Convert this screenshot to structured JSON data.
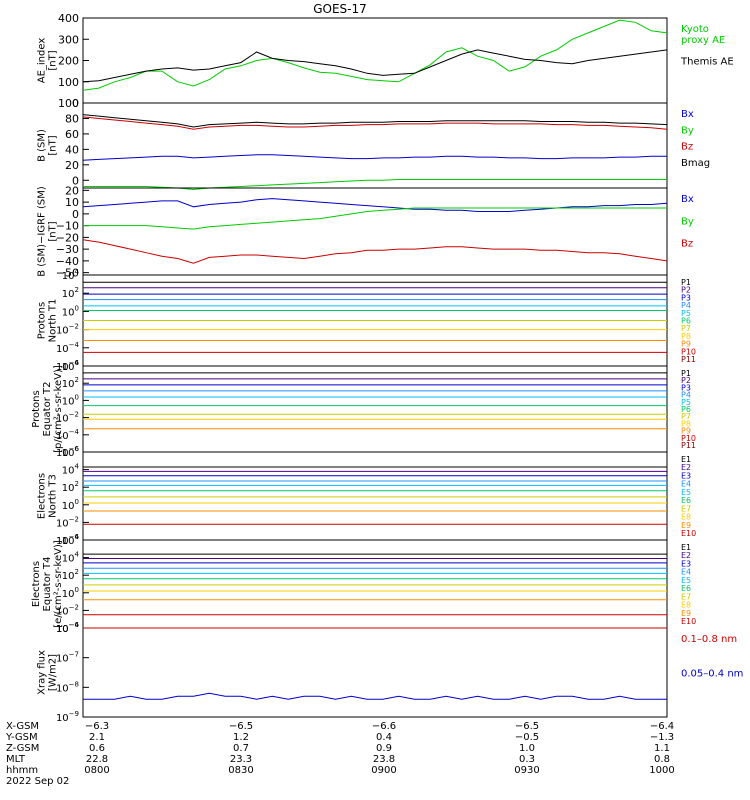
{
  "title": "GOES-17",
  "chart_data": [
    {
      "type": "line",
      "panel": "ae-index",
      "ylabel": [
        "AE_index",
        "[nT]"
      ],
      "ylim": [
        0,
        400
      ],
      "yticks": [
        "0",
        "100",
        "200",
        "300",
        "400"
      ],
      "series": [
        {
          "name": "Kyoto proxy AE",
          "label_lines": [
            "Kyoto",
            "proxy AE"
          ],
          "color": "#00cc00",
          "values": [
            60,
            70,
            100,
            120,
            150,
            150,
            100,
            80,
            110,
            160,
            175,
            200,
            210,
            190,
            165,
            145,
            140,
            125,
            110,
            105,
            100,
            140,
            180,
            240,
            260,
            220,
            200,
            150,
            170,
            220,
            250,
            300,
            330,
            360,
            390,
            380,
            340,
            330
          ]
        },
        {
          "name": "Themis AE",
          "label_lines": [
            "Themis AE"
          ],
          "color": "#000000",
          "values": [
            100,
            105,
            120,
            135,
            150,
            160,
            165,
            155,
            160,
            175,
            190,
            240,
            210,
            200,
            195,
            185,
            175,
            160,
            140,
            130,
            135,
            140,
            170,
            200,
            230,
            250,
            235,
            220,
            205,
            200,
            190,
            185,
            200,
            210,
            220,
            230,
            240,
            250
          ]
        }
      ]
    },
    {
      "type": "line",
      "panel": "b-sm",
      "ylabel": [
        "B (SM)",
        "[nT]"
      ],
      "ylim": [
        -10,
        100
      ],
      "yticks": [
        "0",
        "20",
        "40",
        "60",
        "80",
        "100"
      ],
      "series": [
        {
          "name": "Bx",
          "color": "#0000cc",
          "values": [
            26,
            27,
            28,
            29,
            30,
            31,
            31,
            29,
            30,
            31,
            32,
            33,
            33,
            32,
            31,
            30,
            29,
            28,
            28,
            29,
            29,
            30,
            30,
            31,
            31,
            30,
            30,
            29,
            29,
            28,
            28,
            29,
            29,
            29,
            30,
            30,
            31,
            31
          ]
        },
        {
          "name": "By",
          "color": "#00cc00",
          "values": [
            -8,
            -8,
            -8,
            -8,
            -8,
            -9,
            -10,
            -12,
            -10,
            -9,
            -8,
            -7,
            -6,
            -5,
            -4,
            -3,
            -2,
            -1,
            0,
            0,
            1,
            1,
            1,
            1,
            1,
            1,
            1,
            1,
            1,
            1,
            1,
            1,
            1,
            1,
            1,
            1,
            1,
            1
          ]
        },
        {
          "name": "Bz",
          "color": "#cc0000",
          "values": [
            82,
            80,
            78,
            76,
            74,
            72,
            70,
            66,
            69,
            70,
            71,
            71,
            70,
            69,
            69,
            70,
            71,
            71,
            72,
            72,
            73,
            73,
            73,
            74,
            74,
            74,
            73,
            73,
            73,
            73,
            72,
            72,
            71,
            71,
            70,
            69,
            68,
            66
          ]
        },
        {
          "name": "Bmag",
          "color": "#000000",
          "values": [
            85,
            83,
            81,
            79,
            77,
            75,
            73,
            69,
            72,
            73,
            74,
            75,
            74,
            73,
            73,
            74,
            74,
            75,
            75,
            75,
            76,
            76,
            76,
            77,
            77,
            77,
            77,
            77,
            77,
            76,
            76,
            76,
            75,
            75,
            74,
            74,
            73,
            72
          ]
        }
      ]
    },
    {
      "type": "line",
      "panel": "b-sm-igrf",
      "ylabel": [
        "B (SM)−IGRF (SM)",
        "[nT]"
      ],
      "ylim": [
        -52,
        22
      ],
      "yticks": [
        "−50",
        "−40",
        "−30",
        "−20",
        "−10",
        "0",
        "10",
        "20"
      ],
      "series": [
        {
          "name": "Bx",
          "color": "#0000cc",
          "values": [
            6,
            7,
            8,
            9,
            10,
            11,
            11,
            6,
            8,
            9,
            10,
            12,
            13,
            12,
            11,
            10,
            9,
            8,
            7,
            6,
            5,
            4,
            4,
            3,
            3,
            2,
            2,
            2,
            3,
            4,
            5,
            6,
            6,
            7,
            7,
            8,
            8,
            9
          ]
        },
        {
          "name": "By",
          "color": "#00cc00",
          "values": [
            -10,
            -10,
            -10,
            -10,
            -10,
            -11,
            -12,
            -13,
            -11,
            -10,
            -9,
            -8,
            -7,
            -6,
            -5,
            -4,
            -2,
            0,
            2,
            3,
            4,
            5,
            5,
            5,
            5,
            5,
            5,
            5,
            5,
            5,
            5,
            5,
            5,
            5,
            5,
            5,
            5,
            5
          ]
        },
        {
          "name": "Bz",
          "color": "#cc0000",
          "values": [
            -22,
            -24,
            -27,
            -30,
            -33,
            -36,
            -38,
            -42,
            -37,
            -36,
            -35,
            -35,
            -36,
            -37,
            -38,
            -36,
            -34,
            -33,
            -31,
            -31,
            -30,
            -30,
            -29,
            -28,
            -28,
            -29,
            -30,
            -30,
            -30,
            -31,
            -31,
            -32,
            -33,
            -33,
            -34,
            -36,
            -38,
            -40
          ]
        }
      ]
    },
    {
      "type": "line",
      "panel": "protons-north-t1",
      "ylabel": [
        "Protons",
        "North T1"
      ],
      "ylim": [
        -6,
        4
      ],
      "log_scale": true,
      "ytick_exponents": [
        4,
        2,
        0,
        -2,
        -4,
        -6
      ],
      "series": [
        {
          "name": "P1",
          "color": "#000000",
          "values": [
            3.2
          ]
        },
        {
          "name": "P2",
          "color": "#4b0082",
          "values": [
            2.6
          ]
        },
        {
          "name": "P3",
          "color": "#0000cc",
          "values": [
            1.9
          ]
        },
        {
          "name": "P4",
          "color": "#1e90ff",
          "values": [
            1.3
          ]
        },
        {
          "name": "P5",
          "color": "#00bfff",
          "values": [
            0.6
          ]
        },
        {
          "name": "P6",
          "color": "#00cc66",
          "values": [
            0.1
          ]
        },
        {
          "name": "P7",
          "color": "#cccc00",
          "values": [
            -1.0
          ]
        },
        {
          "name": "P8",
          "color": "#ffcc00",
          "values": [
            -2.0
          ]
        },
        {
          "name": "P9",
          "color": "#ff8c00",
          "values": [
            -3.2
          ]
        },
        {
          "name": "P10",
          "color": "#cc0000",
          "values": [
            -4.5
          ]
        },
        {
          "name": "P11",
          "color": "#8b0000",
          "values": []
        }
      ]
    },
    {
      "type": "line",
      "panel": "protons-equator-t2",
      "ylabel": [
        "Protons",
        "Equator T2",
        "[p/(cm²-s-sr-keV)]"
      ],
      "ylim": [
        -6,
        4
      ],
      "log_scale": true,
      "ytick_exponents": [
        4,
        2,
        0,
        -2,
        -4,
        -6
      ],
      "series": [
        {
          "name": "P1",
          "color": "#000000",
          "values": [
            3.2
          ]
        },
        {
          "name": "P2",
          "color": "#4b0082",
          "values": [
            2.5
          ]
        },
        {
          "name": "P3",
          "color": "#0000cc",
          "values": [
            1.8
          ]
        },
        {
          "name": "P4",
          "color": "#1e90ff",
          "values": [
            1.1
          ]
        },
        {
          "name": "P5",
          "color": "#00bfff",
          "values": [
            0.4
          ]
        },
        {
          "name": "P6",
          "color": "#00cc66",
          "values": [
            -0.6
          ]
        },
        {
          "name": "P7",
          "color": "#cccc00",
          "values": [
            -1.6
          ]
        },
        {
          "name": "P8",
          "color": "#ffcc00",
          "values": [
            -2.2
          ]
        },
        {
          "name": "P9",
          "color": "#ff8c00",
          "values": [
            -3.3
          ]
        },
        {
          "name": "P10",
          "color": "#cc0000",
          "values": []
        },
        {
          "name": "P11",
          "color": "#8b0000",
          "values": []
        }
      ]
    },
    {
      "type": "line",
      "panel": "electrons-north-t3",
      "ylabel": [
        "Electrons",
        "North T3"
      ],
      "ylim": [
        -4,
        6
      ],
      "log_scale": true,
      "ytick_exponents": [
        6,
        4,
        2,
        0,
        -2,
        -4
      ],
      "series": [
        {
          "name": "E1",
          "color": "#000000",
          "values": [
            4.3
          ]
        },
        {
          "name": "E2",
          "color": "#4b0082",
          "values": [
            3.8
          ]
        },
        {
          "name": "E3",
          "color": "#0000cc",
          "values": [
            3.3
          ]
        },
        {
          "name": "E4",
          "color": "#1e90ff",
          "values": [
            2.7
          ]
        },
        {
          "name": "E5",
          "color": "#00bfff",
          "values": [
            2.2
          ]
        },
        {
          "name": "E6",
          "color": "#00cc66",
          "values": [
            1.6
          ]
        },
        {
          "name": "E7",
          "color": "#cccc00",
          "values": [
            0.9
          ]
        },
        {
          "name": "E8",
          "color": "#ffcc00",
          "values": [
            0.2
          ]
        },
        {
          "name": "E9",
          "color": "#ff8c00",
          "values": [
            -0.7
          ]
        },
        {
          "name": "E10",
          "color": "#cc0000",
          "values": [
            -2.2
          ]
        }
      ]
    },
    {
      "type": "line",
      "panel": "electrons-equator-t4",
      "ylabel": [
        "Electrons",
        "Equator T4",
        "[e/(cm²-s-sr-keV)]"
      ],
      "ylim": [
        -4,
        6
      ],
      "log_scale": true,
      "ytick_exponents": [
        6,
        4,
        2,
        0,
        -2,
        -4
      ],
      "series": [
        {
          "name": "E1",
          "color": "#000000",
          "values": [
            4.4
          ]
        },
        {
          "name": "E2",
          "color": "#4b0082",
          "values": [
            3.9
          ]
        },
        {
          "name": "E3",
          "color": "#0000cc",
          "values": [
            3.4
          ]
        },
        {
          "name": "E4",
          "color": "#1e90ff",
          "values": [
            2.8
          ]
        },
        {
          "name": "E5",
          "color": "#00bfff",
          "values": [
            2.2
          ]
        },
        {
          "name": "E6",
          "color": "#00cc66",
          "values": [
            1.6
          ]
        },
        {
          "name": "E7",
          "color": "#cccc00",
          "values": [
            0.9
          ]
        },
        {
          "name": "E8",
          "color": "#ffcc00",
          "values": [
            0.2
          ]
        },
        {
          "name": "E9",
          "color": "#ff8c00",
          "values": [
            -0.8
          ]
        },
        {
          "name": "E10",
          "color": "#cc0000",
          "values": [
            -2.5
          ]
        }
      ]
    },
    {
      "type": "line",
      "panel": "xray-flux",
      "ylabel": [
        "Xray flux",
        "[W/m2]"
      ],
      "ylim": [
        -9,
        -6
      ],
      "log_scale": true,
      "ytick_exponents": [
        -6,
        -7,
        -8,
        -9
      ],
      "series": [
        {
          "name": "0.1–0.8 nm",
          "color": "#cc0000",
          "values": [
            -6.0,
            -6.0,
            -6.0,
            -6.0,
            -6.0,
            -6.0,
            -6.0,
            -6.0,
            -6.0,
            -6.0,
            -6.0,
            -6.0,
            -6.0,
            -6.0,
            -6.0,
            -6.0,
            -6.0,
            -6.0,
            -6.0,
            -6.0,
            -6.0,
            -6.0,
            -6.0,
            -6.0,
            -6.0,
            -6.0,
            -6.0,
            -6.0,
            -6.0,
            -6.0,
            -6.0,
            -6.0,
            -6.0,
            -6.0,
            -6.0,
            -6.0,
            -6.0,
            -6.0
          ]
        },
        {
          "name": "0.05–0.4 nm",
          "color": "#0000cc",
          "values": [
            -8.4,
            -8.4,
            -8.4,
            -8.3,
            -8.4,
            -8.4,
            -8.3,
            -8.3,
            -8.2,
            -8.3,
            -8.3,
            -8.4,
            -8.3,
            -8.4,
            -8.3,
            -8.3,
            -8.4,
            -8.3,
            -8.4,
            -8.4,
            -8.3,
            -8.4,
            -8.4,
            -8.3,
            -8.4,
            -8.3,
            -8.4,
            -8.4,
            -8.3,
            -8.4,
            -8.3,
            -8.3,
            -8.4,
            -8.4,
            -8.3,
            -8.4,
            -8.4,
            -8.4
          ]
        }
      ]
    }
  ],
  "x_axis": {
    "rows": [
      {
        "label": "X-GSM",
        "values": [
          "−6.3",
          "−6.5",
          "−6.6",
          "−6.5",
          "−6.4"
        ]
      },
      {
        "label": "Y-GSM",
        "values": [
          "2.1",
          "1.2",
          "0.4",
          "−0.5",
          "−1.3"
        ]
      },
      {
        "label": "Z-GSM",
        "values": [
          "0.6",
          "0.7",
          "0.9",
          "1.0",
          "1.1"
        ]
      },
      {
        "label": "MLT",
        "values": [
          "22.8",
          "23.3",
          "23.8",
          "0.3",
          "0.8"
        ]
      },
      {
        "label": "hhmm",
        "values": [
          "0800",
          "0830",
          "0900",
          "0930",
          "1000"
        ]
      }
    ],
    "date": "2022 Sep 02"
  }
}
